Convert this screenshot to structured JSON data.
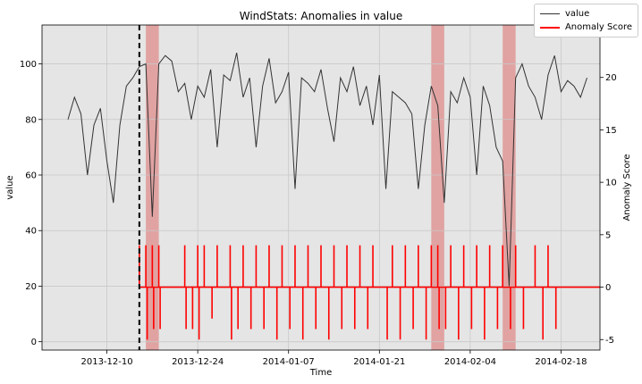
{
  "chart_data": {
    "type": "line",
    "title": "WindStats: Anomalies in value",
    "xlabel": "Time",
    "ylabel": "value",
    "ylabel_right": "Anomaly Score",
    "x_range": [
      "2013-11-30",
      "2014-02-24"
    ],
    "ylim": [
      -3,
      114
    ],
    "ylim_right": [
      -6,
      25
    ],
    "grid": true,
    "legend_placement": "top-right",
    "x_ticks": [
      "2013-12-10",
      "2013-12-24",
      "2014-01-07",
      "2014-01-21",
      "2014-02-04",
      "2014-02-18"
    ],
    "y_ticks": [
      0,
      20,
      40,
      60,
      80,
      100
    ],
    "y_ticks_right": [
      -5,
      0,
      5,
      10,
      15,
      20
    ],
    "vertical_line": "2013-12-15",
    "anomaly_spans": [
      [
        "2013-12-16",
        "2013-12-18"
      ],
      [
        "2014-01-29",
        "2014-01-31"
      ],
      [
        "2014-02-09",
        "2014-02-11"
      ]
    ],
    "series": [
      {
        "name": "value",
        "axis": "left",
        "color": "#333333",
        "x": [
          "2013-12-04",
          "2013-12-05",
          "2013-12-06",
          "2013-12-07",
          "2013-12-08",
          "2013-12-09",
          "2013-12-10",
          "2013-12-11",
          "2013-12-12",
          "2013-12-13",
          "2013-12-14",
          "2013-12-15",
          "2013-12-16",
          "2013-12-17",
          "2013-12-18",
          "2013-12-19",
          "2013-12-20",
          "2013-12-21",
          "2013-12-22",
          "2013-12-23",
          "2013-12-24",
          "2013-12-25",
          "2013-12-26",
          "2013-12-27",
          "2013-12-28",
          "2013-12-29",
          "2013-12-30",
          "2013-12-31",
          "2014-01-01",
          "2014-01-02",
          "2014-01-03",
          "2014-01-04",
          "2014-01-05",
          "2014-01-06",
          "2014-01-07",
          "2014-01-08",
          "2014-01-09",
          "2014-01-10",
          "2014-01-11",
          "2014-01-12",
          "2014-01-13",
          "2014-01-14",
          "2014-01-15",
          "2014-01-16",
          "2014-01-17",
          "2014-01-18",
          "2014-01-19",
          "2014-01-20",
          "2014-01-21",
          "2014-01-22",
          "2014-01-23",
          "2014-01-24",
          "2014-01-25",
          "2014-01-26",
          "2014-01-27",
          "2014-01-28",
          "2014-01-29",
          "2014-01-30",
          "2014-01-31",
          "2014-02-01",
          "2014-02-02",
          "2014-02-03",
          "2014-02-04",
          "2014-02-05",
          "2014-02-06",
          "2014-02-07",
          "2014-02-08",
          "2014-02-09",
          "2014-02-10",
          "2014-02-11",
          "2014-02-12",
          "2014-02-13",
          "2014-02-14",
          "2014-02-15",
          "2014-02-16",
          "2014-02-17",
          "2014-02-18",
          "2014-02-19",
          "2014-02-20",
          "2014-02-21",
          "2014-02-22"
        ],
        "values": [
          80,
          88,
          82,
          60,
          78,
          84,
          65,
          50,
          78,
          92,
          95,
          99,
          100,
          45,
          100,
          103,
          101,
          90,
          93,
          80,
          92,
          88,
          98,
          70,
          96,
          94,
          104,
          88,
          95,
          70,
          92,
          102,
          86,
          90,
          97,
          55,
          95,
          93,
          90,
          98,
          84,
          72,
          95,
          90,
          99,
          85,
          92,
          78,
          96,
          55,
          90,
          88,
          86,
          82,
          55,
          78,
          92,
          85,
          50,
          90,
          86,
          95,
          88,
          60,
          92,
          85,
          70,
          65,
          20,
          95,
          100,
          92,
          88,
          80,
          96,
          103,
          90,
          94,
          92,
          88,
          95
        ]
      },
      {
        "name": "Anomaly Score",
        "axis": "right",
        "color": "#ff0000",
        "x": [
          "2013-12-15",
          "2013-12-16",
          "2013-12-16",
          "2013-12-17",
          "2013-12-17",
          "2013-12-18",
          "2013-12-18",
          "2013-12-22",
          "2013-12-22",
          "2013-12-23",
          "2013-12-24",
          "2013-12-24",
          "2013-12-25",
          "2013-12-26",
          "2013-12-27",
          "2013-12-29",
          "2013-12-29",
          "2013-12-30",
          "2013-12-31",
          "2014-01-01",
          "2014-01-02",
          "2014-01-03",
          "2014-01-04",
          "2014-01-05",
          "2014-01-06",
          "2014-01-07",
          "2014-01-08",
          "2014-01-09",
          "2014-01-10",
          "2014-01-11",
          "2014-01-12",
          "2014-01-13",
          "2014-01-14",
          "2014-01-15",
          "2014-01-16",
          "2014-01-17",
          "2014-01-18",
          "2014-01-19",
          "2014-01-20",
          "2014-01-22",
          "2014-01-23",
          "2014-01-24",
          "2014-01-25",
          "2014-01-26",
          "2014-01-27",
          "2014-01-28",
          "2014-01-29",
          "2014-01-30",
          "2014-01-30",
          "2014-01-31",
          "2014-02-01",
          "2014-02-02",
          "2014-02-03",
          "2014-02-04",
          "2014-02-05",
          "2014-02-06",
          "2014-02-07",
          "2014-02-08",
          "2014-02-09",
          "2014-02-10",
          "2014-02-11",
          "2014-02-12",
          "2014-02-14",
          "2014-02-15",
          "2014-02-16",
          "2014-02-17"
        ],
        "values": [
          4,
          -5,
          4,
          -4,
          4,
          -4,
          4,
          -4,
          4,
          -4,
          4,
          -5,
          4,
          -3,
          4,
          -5,
          4,
          -4,
          4,
          -4,
          4,
          -4,
          4,
          -5,
          4,
          -4,
          4,
          -5,
          4,
          -4,
          4,
          -5,
          4,
          -4,
          4,
          -4,
          4,
          -4,
          4,
          -5,
          4,
          -5,
          4,
          -4,
          4,
          -5,
          4,
          -4,
          4,
          -4,
          4,
          -5,
          4,
          -4,
          4,
          -5,
          4,
          -4,
          4,
          -4,
          4,
          -4,
          4,
          -5,
          4,
          -4
        ]
      }
    ]
  }
}
